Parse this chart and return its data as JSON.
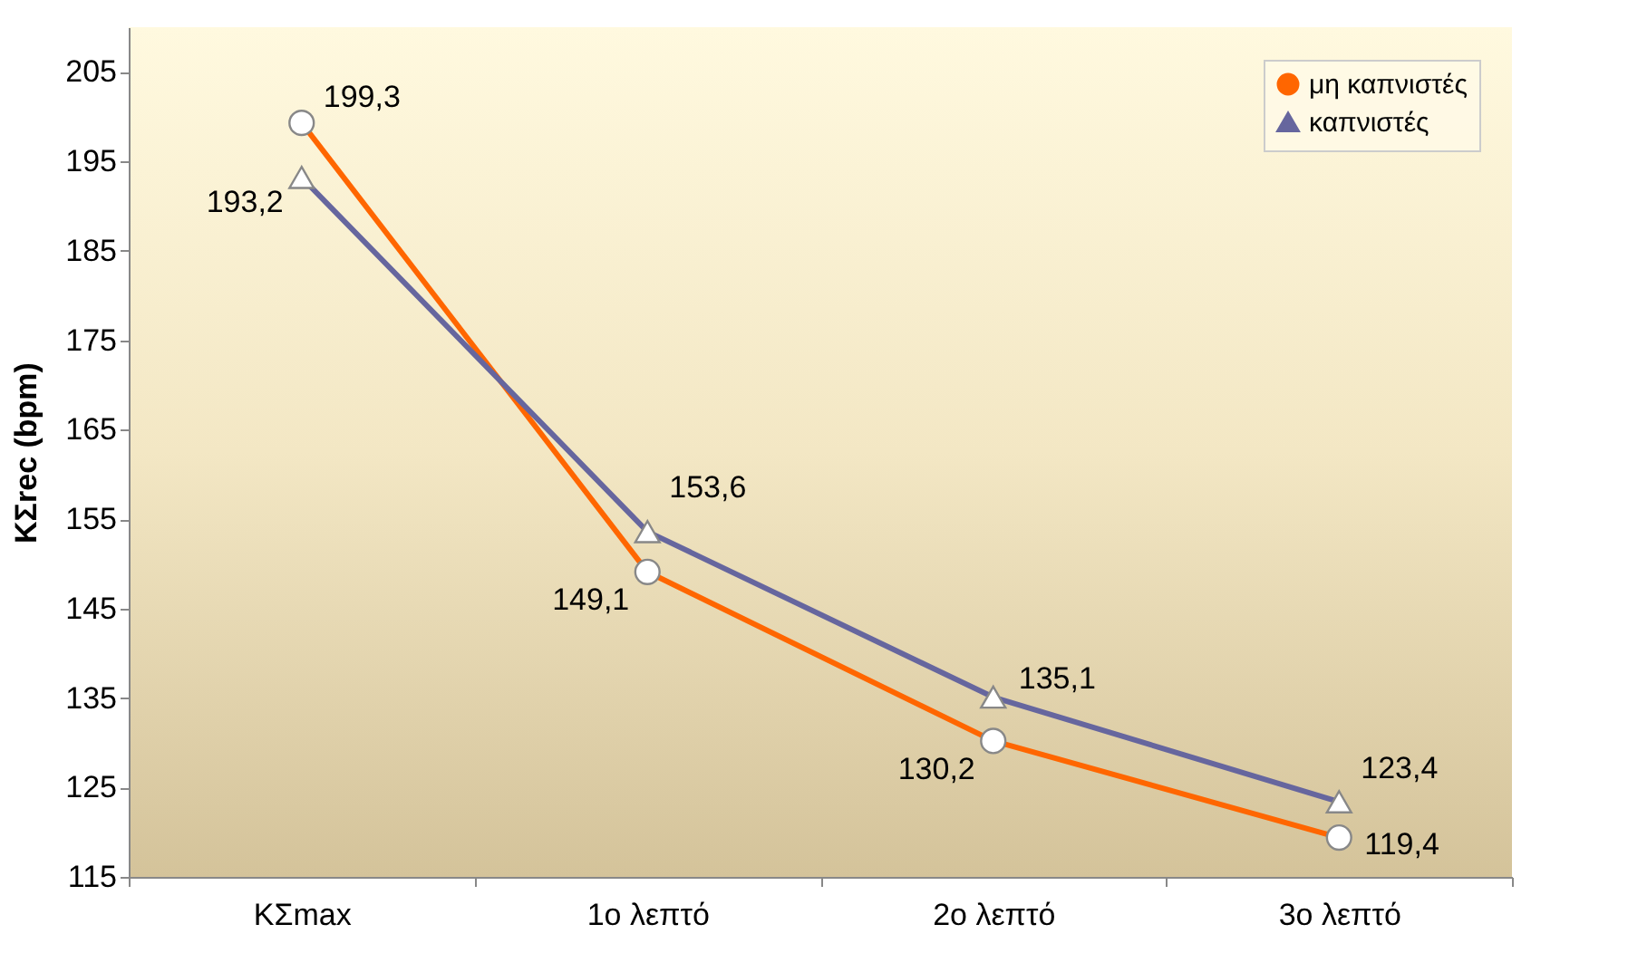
{
  "chart_data": {
    "type": "line",
    "ylabel": "ΚΣrec (bpm)",
    "categories": [
      "ΚΣmax",
      "1ο λεπτό",
      "2ο λεπτό",
      "3ο λεπτό"
    ],
    "series": [
      {
        "name": "μη καπνιστές",
        "color": "#ff6600",
        "marker": "circle",
        "values": [
          199.3,
          149.1,
          130.2,
          119.4
        ],
        "value_labels": [
          "199,3",
          "149,1",
          "130,2",
          "119,4"
        ]
      },
      {
        "name": "καπνιστές",
        "color": "#66669e",
        "marker": "triangle",
        "values": [
          193.2,
          153.6,
          135.1,
          123.4
        ],
        "value_labels": [
          "193,2",
          "153,6",
          "135,1",
          "123,4"
        ]
      }
    ],
    "ylim": [
      115,
      210
    ],
    "yticks": [
      115,
      125,
      135,
      145,
      155,
      165,
      175,
      185,
      195,
      205
    ],
    "grid": false,
    "legend": "top right"
  }
}
